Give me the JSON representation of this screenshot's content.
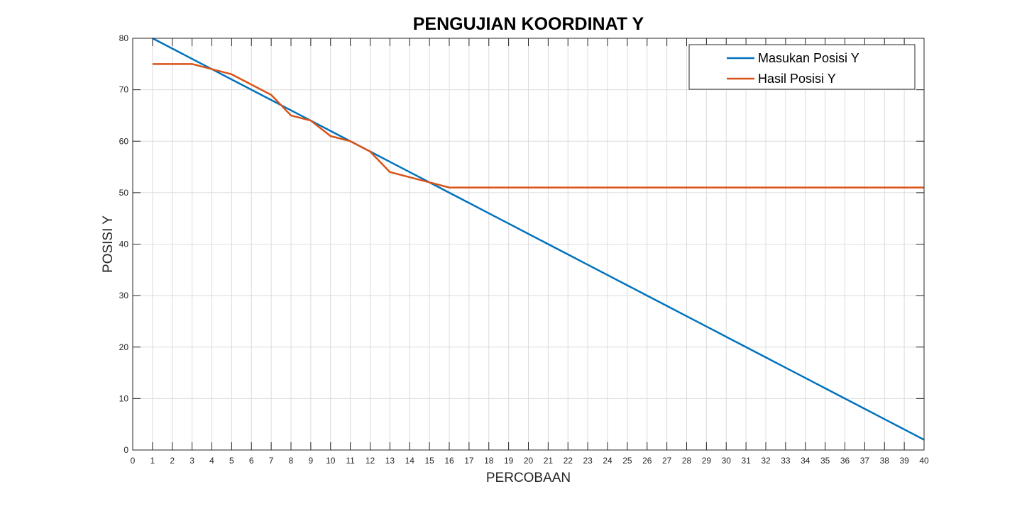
{
  "chart_data": {
    "type": "line",
    "title": "PENGUJIAN KOORDINAT Y",
    "xlabel": "PERCOBAAN",
    "ylabel": "POSISI Y",
    "xlim": [
      0,
      40
    ],
    "ylim": [
      0,
      80
    ],
    "xticks": [
      0,
      1,
      2,
      3,
      4,
      5,
      6,
      7,
      8,
      9,
      10,
      11,
      12,
      13,
      14,
      15,
      16,
      17,
      18,
      19,
      20,
      21,
      22,
      23,
      24,
      25,
      26,
      27,
      28,
      29,
      30,
      31,
      32,
      33,
      34,
      35,
      36,
      37,
      38,
      39,
      40
    ],
    "yticks": [
      0,
      10,
      20,
      30,
      40,
      50,
      60,
      70,
      80
    ],
    "grid": true,
    "legend_position": "top-right",
    "x": [
      1,
      2,
      3,
      4,
      5,
      6,
      7,
      8,
      9,
      10,
      11,
      12,
      13,
      14,
      15,
      16,
      17,
      18,
      19,
      20,
      21,
      22,
      23,
      24,
      25,
      26,
      27,
      28,
      29,
      30,
      31,
      32,
      33,
      34,
      35,
      36,
      37,
      38,
      39,
      40
    ],
    "series": [
      {
        "name": "Masukan Posisi Y",
        "color": "#0072BD",
        "values": [
          80,
          78,
          76,
          74,
          72,
          70,
          68,
          66,
          64,
          62,
          60,
          58,
          56,
          54,
          52,
          50,
          48,
          46,
          44,
          42,
          40,
          38,
          36,
          34,
          32,
          30,
          28,
          26,
          24,
          22,
          20,
          18,
          16,
          14,
          12,
          10,
          8,
          6,
          4,
          2
        ]
      },
      {
        "name": "Hasil Posisi Y",
        "color": "#D95319",
        "values": [
          75,
          75,
          75,
          74,
          73,
          71,
          69,
          65,
          64,
          61,
          60,
          58,
          54,
          53,
          52,
          51,
          51,
          51,
          51,
          51,
          51,
          51,
          51,
          51,
          51,
          51,
          51,
          51,
          51,
          51,
          51,
          51,
          51,
          51,
          51,
          51,
          51,
          51,
          51,
          51
        ]
      }
    ]
  }
}
